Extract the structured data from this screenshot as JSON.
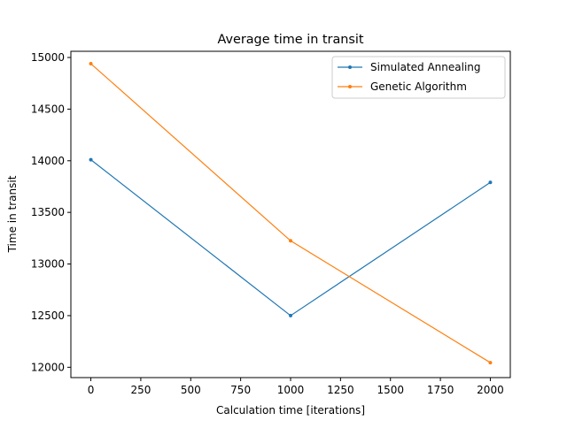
{
  "chart_data": {
    "type": "line",
    "title": "Average time in transit",
    "xlabel": "Calculation time [iterations]",
    "ylabel": "Time in transit",
    "x": [
      0,
      1000,
      2000
    ],
    "xlim": [
      -100,
      2100
    ],
    "ylim": [
      11900,
      15060
    ],
    "xticks": [
      0,
      250,
      500,
      750,
      1000,
      1250,
      1500,
      1750,
      2000
    ],
    "yticks": [
      12000,
      12500,
      13000,
      13500,
      14000,
      14500,
      15000
    ],
    "grid": false,
    "legend_position": "top-right",
    "series": [
      {
        "name": "Simulated Annealing",
        "color": "#1f77b4",
        "marker": "point",
        "values": [
          14010,
          12500,
          13790
        ]
      },
      {
        "name": "Genetic Algorithm",
        "color": "#ff7f0e",
        "marker": "point",
        "values": [
          14940,
          13225,
          12045
        ]
      }
    ]
  }
}
